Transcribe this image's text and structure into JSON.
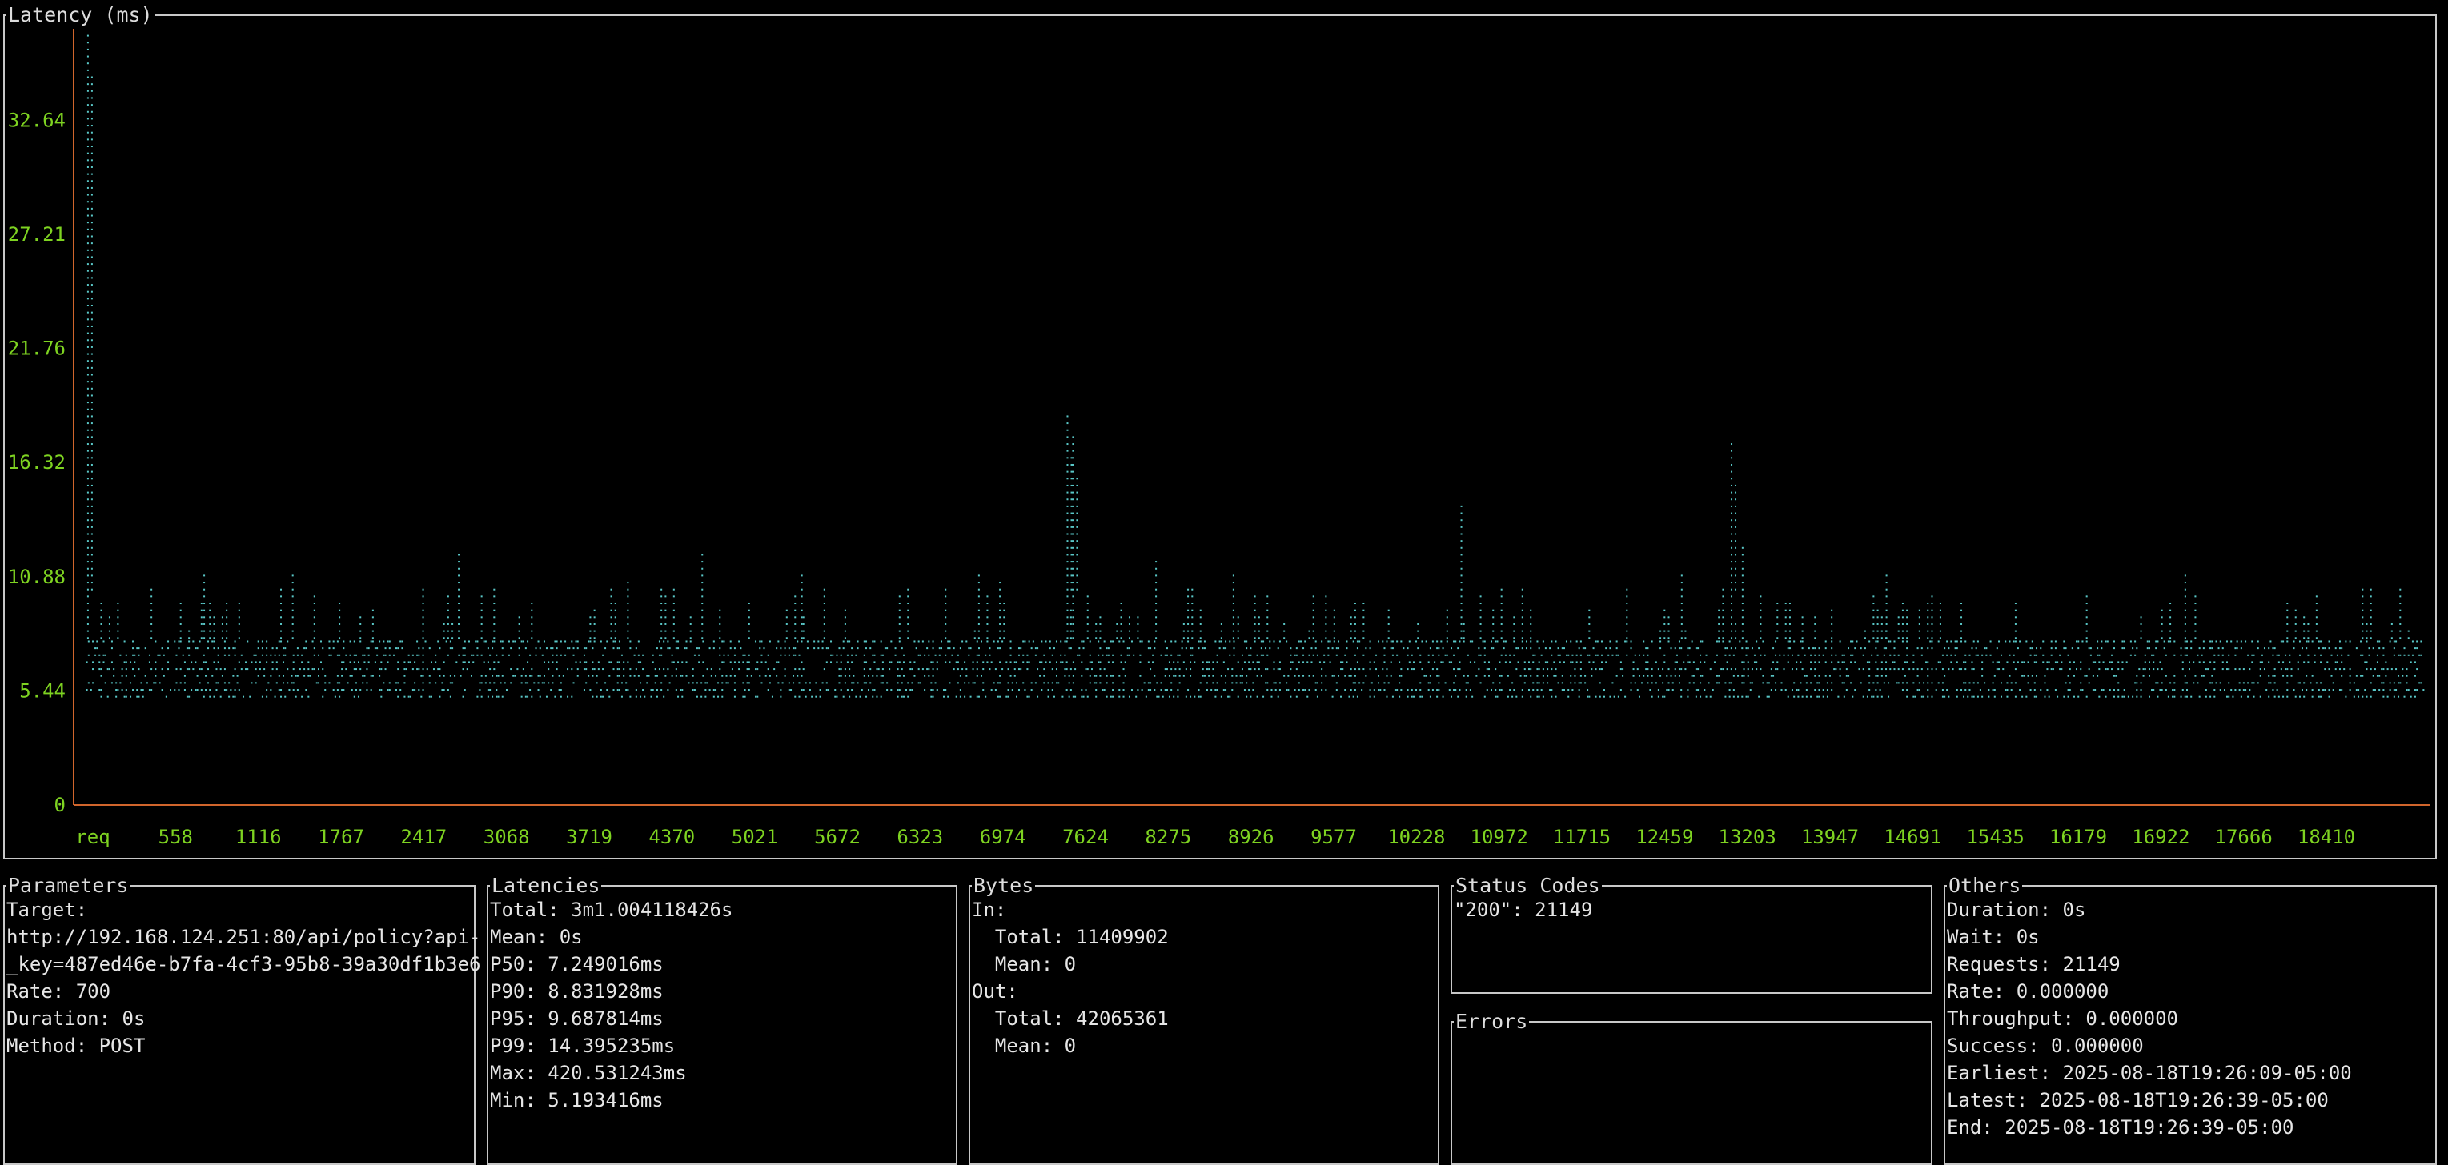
{
  "latency_panel": {
    "title": "Latency (ms)",
    "colors": {
      "axis": "#d0652c",
      "tick_label": "#7ed321",
      "points": "#5ac8c8"
    }
  },
  "chart_data": {
    "type": "scatter",
    "title": "Latency (ms)",
    "xlabel": "req",
    "ylabel": "",
    "x_tick_labels": [
      "req",
      "558",
      "1116",
      "1767",
      "2417",
      "3068",
      "3719",
      "4370",
      "5021",
      "5672",
      "6323",
      "6974",
      "7624",
      "8275",
      "8926",
      "9577",
      "10228",
      "10972",
      "11715",
      "12459",
      "13203",
      "13947",
      "14691",
      "15435",
      "16179",
      "16922",
      "17666",
      "18410"
    ],
    "y_tick_labels": [
      "0",
      "5.44",
      "10.88",
      "16.32",
      "21.76",
      "27.21",
      "32.64"
    ],
    "ylim": [
      0,
      37
    ],
    "xlim": [
      0,
      21149
    ],
    "grid": false,
    "baseline_band_ms": [
      5.2,
      8.0
    ],
    "spikes": [
      {
        "x": 50,
        "y": 37.0
      },
      {
        "x": 8900,
        "y": 18.7
      },
      {
        "x": 8950,
        "y": 17.6
      },
      {
        "x": 12459,
        "y": 14.5
      },
      {
        "x": 14900,
        "y": 17.5
      },
      {
        "x": 3400,
        "y": 12.1
      },
      {
        "x": 5600,
        "y": 12.0
      },
      {
        "x": 9700,
        "y": 11.8
      },
      {
        "x": 15000,
        "y": 12.5
      },
      {
        "x": 1100,
        "y": 11.2
      },
      {
        "x": 1900,
        "y": 11.2
      },
      {
        "x": 6500,
        "y": 11.2
      },
      {
        "x": 8100,
        "y": 11.2
      },
      {
        "x": 10400,
        "y": 11.2
      },
      {
        "x": 14450,
        "y": 11.2
      },
      {
        "x": 16300,
        "y": 11.2
      },
      {
        "x": 19000,
        "y": 11.2
      }
    ]
  },
  "parameters": {
    "title": "Parameters",
    "lines": [
      "Target:",
      "http://192.168.124.251:80/api/policy?api-",
      "_key=487ed46e-b7fa-4cf3-95b8-39a30df1b3e6",
      "Rate: 700",
      "Duration: 0s",
      "Method: POST"
    ]
  },
  "latencies": {
    "title": "Latencies",
    "lines": [
      "Total: 3m1.004118426s",
      "Mean: 0s",
      "P50: 7.249016ms",
      "P90: 8.831928ms",
      "P95: 9.687814ms",
      "P99: 14.395235ms",
      "Max: 420.531243ms",
      "Min: 5.193416ms"
    ]
  },
  "bytes": {
    "title": "Bytes",
    "lines": [
      "In:",
      "  Total: 11409902",
      "  Mean: 0",
      "Out:",
      "  Total: 42065361",
      "  Mean: 0"
    ]
  },
  "status_codes": {
    "title": "Status Codes",
    "lines": [
      "\"200\": 21149"
    ]
  },
  "errors": {
    "title": "Errors",
    "lines": []
  },
  "others": {
    "title": "Others",
    "lines": [
      "Duration: 0s",
      "Wait: 0s",
      "Requests: 21149",
      "Rate: 0.000000",
      "Throughput: 0.000000",
      "Success: 0.000000",
      "Earliest: 2025-08-18T19:26:09-05:00",
      "Latest: 2025-08-18T19:26:39-05:00",
      "End: 2025-08-18T19:26:39-05:00"
    ]
  }
}
